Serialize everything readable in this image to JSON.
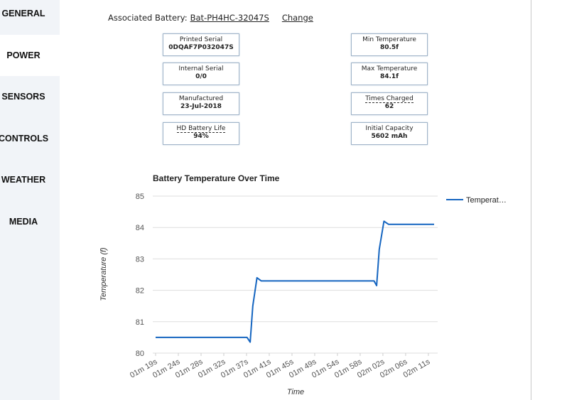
{
  "sidebar": {
    "items": [
      "GENERAL",
      "POWER",
      "SENSORS",
      "CONTROLS",
      "WEATHER",
      "MEDIA"
    ]
  },
  "header": {
    "label": "Associated Battery:",
    "battery": "Bat-PH4HC-32047S",
    "change": "Change"
  },
  "info": {
    "left": [
      {
        "label": "Printed Serial",
        "value": "0DQAF7P032047S"
      },
      {
        "label": "Internal Serial",
        "value": "0/0"
      },
      {
        "label": "Manufactured",
        "value": "23-Jul-2018"
      },
      {
        "label": "HD Battery Life",
        "value": "94%"
      }
    ],
    "right": [
      {
        "label": "Min Temperature",
        "value": "80.5f"
      },
      {
        "label": "Max Temperature",
        "value": "84.1f"
      },
      {
        "label": "Times Charged",
        "value": "62"
      },
      {
        "label": "Initial Capacity",
        "value": "5602 mAh"
      }
    ]
  },
  "chart_data": {
    "type": "line",
    "title": "Battery Temperature Over Time",
    "x_label": "Time",
    "y_label": "Temperature (f)",
    "x": [
      79,
      96.5,
      97.1,
      97.6,
      98.4,
      99.2,
      120.8,
      121.3,
      121.8,
      122.7,
      123.6,
      132.3
    ],
    "series": [
      {
        "name": "Temperat…",
        "color": "#1565c0",
        "values": [
          80.5,
          80.5,
          80.35,
          81.5,
          82.4,
          82.3,
          82.3,
          82.15,
          83.3,
          84.2,
          84.1,
          84.1
        ]
      }
    ],
    "xlim": [
      79,
      132.3
    ],
    "xticks": [
      {
        "value": 79,
        "label": "01m 19s"
      },
      {
        "value": 83.35,
        "label": "01m 24s"
      },
      {
        "value": 87.7,
        "label": "01m 28s"
      },
      {
        "value": 92.05,
        "label": "01m 32s"
      },
      {
        "value": 96.4,
        "label": "01m 37s"
      },
      {
        "value": 100.75,
        "label": "01m 41s"
      },
      {
        "value": 105.1,
        "label": "01m 45s"
      },
      {
        "value": 109.45,
        "label": "01m 49s"
      },
      {
        "value": 113.8,
        "label": "01m 54s"
      },
      {
        "value": 118.15,
        "label": "01m 58s"
      },
      {
        "value": 122.5,
        "label": "02m 02s"
      },
      {
        "value": 126.85,
        "label": "02m 06s"
      },
      {
        "value": 131.2,
        "label": "02m 11s"
      }
    ],
    "ylim": [
      80,
      85
    ],
    "yticks": [
      80,
      81,
      82,
      83,
      84,
      85
    ],
    "grid": true,
    "legend": "right"
  }
}
